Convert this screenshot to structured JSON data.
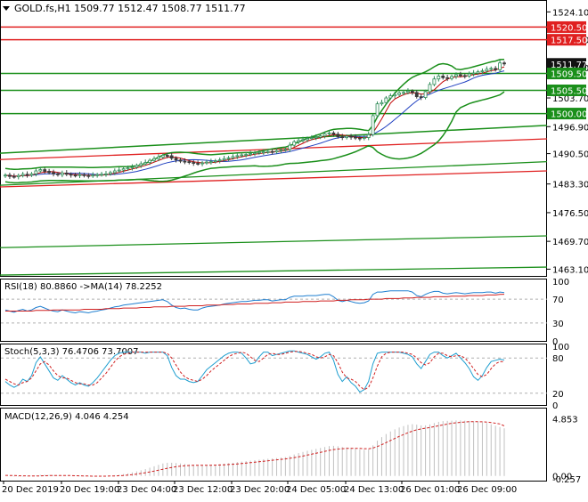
{
  "title": "GOLD.fs,H1  1509.77 1512.47 1508.77 1511.77",
  "colors": {
    "up": "#2e8b57",
    "down": "#3a3a3a",
    "support": "#1a8f1a",
    "resistance": "#e02020",
    "ma_fast": "#c00000",
    "ma_slow": "#1f3fc0",
    "rsi": "#1f7fd0",
    "rsi_ma": "#d02020",
    "stoch_main": "#1f9fd0",
    "stoch_signal": "#d02020",
    "macd_hist": "#c0c0c0",
    "macd_signal": "#d02020",
    "tag_green": "#1a8f1a",
    "tag_red": "#e02020",
    "tag_current": "#111111"
  },
  "chart_data": [
    {
      "type": "candlestick",
      "title": "GOLD.fs,H1  1509.77 1512.47 1508.77 1511.77",
      "ylim": [
        1461.5,
        1526.5
      ],
      "y_ticks": [
        "1524.10",
        "1517.50",
        "1510.90",
        "1503.70",
        "1496.90",
        "1490.50",
        "1483.30",
        "1476.50",
        "1469.70",
        "1463.10"
      ],
      "x_labels": [
        "20 Dec 2019",
        "20 Dec 19:00",
        "23 Dec 04:00",
        "23 Dec 12:00",
        "23 Dec 20:00",
        "24 Dec 05:00",
        "24 Dec 13:00",
        "26 Dec 01:00",
        "26 Dec 09:00"
      ],
      "price_tags": [
        {
          "label": "1520.50",
          "kind": "resistance"
        },
        {
          "label": "1517.50",
          "kind": "resistance"
        },
        {
          "label": "1511.77",
          "kind": "current"
        },
        {
          "label": "1509.50",
          "kind": "support"
        },
        {
          "label": "1505.50",
          "kind": "support"
        },
        {
          "label": "1500.00",
          "kind": "support"
        }
      ],
      "horizontal_levels": {
        "resistance": [
          1520.5,
          1517.5
        ],
        "support": [
          1509.5,
          1505.5,
          1500.0
        ]
      },
      "closes": [
        1485.4,
        1485.1,
        1485.0,
        1485.3,
        1485.6,
        1485.4,
        1485.7,
        1486.4,
        1486.7,
        1486.3,
        1486.0,
        1485.7,
        1485.5,
        1485.9,
        1485.6,
        1485.4,
        1485.3,
        1485.5,
        1485.3,
        1485.2,
        1485.4,
        1485.5,
        1485.6,
        1485.7,
        1486.0,
        1486.4,
        1486.6,
        1486.9,
        1487.1,
        1487.3,
        1487.7,
        1488.1,
        1488.4,
        1488.9,
        1489.3,
        1489.7,
        1490.1,
        1490.0,
        1489.4,
        1489.0,
        1488.7,
        1488.6,
        1488.4,
        1488.2,
        1488.1,
        1488.3,
        1488.5,
        1488.6,
        1488.8,
        1489.0,
        1489.3,
        1489.5,
        1489.8,
        1490.0,
        1490.2,
        1490.3,
        1490.5,
        1490.7,
        1490.8,
        1490.9,
        1491.0,
        1490.9,
        1491.2,
        1491.4,
        1491.5,
        1492.5,
        1493.3,
        1493.6,
        1493.8,
        1494.1,
        1494.3,
        1494.4,
        1494.7,
        1495.2,
        1495.4,
        1495.1,
        1494.5,
        1494.3,
        1494.6,
        1494.4,
        1494.2,
        1494.1,
        1494.3,
        1495.0,
        1499.5,
        1502.3,
        1502.6,
        1503.7,
        1504.2,
        1504.5,
        1504.9,
        1505.0,
        1505.3,
        1505.0,
        1504.0,
        1503.8,
        1505.2,
        1506.9,
        1508.2,
        1508.9,
        1508.5,
        1508.3,
        1508.8,
        1509.2,
        1509.0,
        1508.9,
        1509.4,
        1509.6,
        1509.9,
        1510.1,
        1510.5,
        1510.7,
        1510.4,
        1512.0,
        1511.77
      ]
    },
    {
      "type": "line",
      "title": "RSI(18) 80.8860  ->MA(14) 78.2252",
      "ylim": [
        0,
        100
      ],
      "y_ticks": [
        "100",
        "70",
        "30",
        "0"
      ],
      "levels": [
        70,
        30
      ],
      "series": [
        {
          "name": "RSI(18)",
          "values": [
            52,
            50,
            48,
            51,
            53,
            50,
            52,
            56,
            58,
            55,
            52,
            50,
            49,
            52,
            50,
            48,
            47,
            49,
            48,
            47,
            49,
            50,
            52,
            53,
            55,
            57,
            58,
            60,
            61,
            62,
            63,
            64,
            65,
            66,
            67,
            68,
            69,
            66,
            60,
            56,
            54,
            55,
            53,
            52,
            52,
            55,
            57,
            58,
            59,
            60,
            62,
            63,
            64,
            65,
            66,
            66,
            67,
            68,
            68,
            69,
            69,
            67,
            68,
            69,
            69,
            73,
            75,
            75,
            75,
            76,
            76,
            76,
            77,
            78,
            78,
            74,
            68,
            66,
            68,
            66,
            64,
            63,
            64,
            67,
            78,
            82,
            82,
            83,
            84,
            84,
            84,
            84,
            84,
            82,
            76,
            74,
            78,
            81,
            83,
            83,
            80,
            79,
            80,
            81,
            80,
            79,
            80,
            81,
            81,
            81,
            82,
            82,
            80,
            82,
            80.886
          ]
        },
        {
          "name": "MA(14)",
          "values": [
            50,
            50,
            50,
            50,
            50,
            50,
            50,
            51,
            51,
            51,
            51,
            52,
            52,
            52,
            52,
            52,
            52,
            52,
            53,
            53,
            53,
            53,
            53,
            54,
            54,
            54,
            54,
            55,
            55,
            55,
            55,
            56,
            56,
            56,
            57,
            57,
            57,
            57,
            58,
            58,
            58,
            58,
            59,
            59,
            59,
            59,
            60,
            60,
            60,
            60,
            61,
            61,
            61,
            62,
            62,
            62,
            62,
            63,
            63,
            63,
            63,
            64,
            64,
            64,
            65,
            65,
            65,
            65,
            66,
            66,
            66,
            66,
            67,
            67,
            67,
            67,
            68,
            68,
            68,
            69,
            69,
            69,
            69,
            70,
            70,
            70,
            70,
            71,
            71,
            71,
            71,
            72,
            72,
            72,
            73,
            73,
            73,
            73,
            74,
            74,
            74,
            74,
            75,
            75,
            75,
            75,
            76,
            76,
            76,
            76,
            77,
            77,
            77,
            78,
            78.2252
          ]
        }
      ]
    },
    {
      "type": "line",
      "title": "Stoch(5,3,3) 76.4706 73.7007",
      "ylim": [
        0,
        100
      ],
      "y_ticks": [
        "100",
        "80",
        "20",
        "0"
      ],
      "levels": [
        80,
        20
      ],
      "series": [
        {
          "name": "%K",
          "values": [
            40,
            34,
            30,
            34,
            44,
            40,
            50,
            72,
            82,
            70,
            58,
            46,
            42,
            50,
            44,
            38,
            34,
            38,
            34,
            32,
            38,
            46,
            56,
            66,
            76,
            84,
            88,
            90,
            90,
            90,
            90,
            90,
            88,
            90,
            90,
            90,
            90,
            84,
            64,
            50,
            44,
            44,
            40,
            38,
            40,
            50,
            60,
            66,
            72,
            78,
            84,
            88,
            90,
            90,
            88,
            80,
            70,
            72,
            82,
            90,
            90,
            84,
            86,
            88,
            90,
            92,
            92,
            90,
            88,
            86,
            82,
            78,
            82,
            88,
            90,
            76,
            52,
            40,
            48,
            38,
            32,
            22,
            26,
            40,
            70,
            88,
            90,
            90,
            90,
            90,
            90,
            88,
            86,
            82,
            70,
            62,
            74,
            86,
            90,
            90,
            84,
            80,
            84,
            88,
            80,
            72,
            62,
            48,
            42,
            50,
            64,
            74,
            76,
            78,
            76.4706
          ]
        },
        {
          "name": "%D",
          "values": [
            44,
            40,
            36,
            34,
            38,
            40,
            46,
            58,
            70,
            74,
            68,
            58,
            50,
            46,
            46,
            42,
            38,
            36,
            36,
            34,
            34,
            38,
            46,
            54,
            64,
            74,
            82,
            86,
            88,
            90,
            90,
            90,
            90,
            90,
            90,
            90,
            90,
            88,
            80,
            68,
            56,
            48,
            44,
            42,
            40,
            44,
            50,
            58,
            64,
            70,
            76,
            82,
            86,
            88,
            90,
            88,
            82,
            76,
            74,
            80,
            86,
            88,
            86,
            86,
            88,
            90,
            91,
            91,
            90,
            88,
            86,
            82,
            80,
            82,
            86,
            84,
            72,
            56,
            46,
            44,
            40,
            32,
            26,
            30,
            46,
            66,
            82,
            88,
            90,
            90,
            90,
            90,
            88,
            86,
            80,
            72,
            68,
            72,
            82,
            88,
            88,
            84,
            82,
            84,
            84,
            80,
            72,
            62,
            52,
            48,
            52,
            62,
            70,
            74,
            73.7007
          ]
        }
      ]
    },
    {
      "type": "bar",
      "title": "MACD(12,26,9) 4.046 4.254",
      "ylim": [
        -0.4,
        5.2
      ],
      "y_ticks": [
        "4.853",
        "-0.257",
        "0.00"
      ],
      "series": [
        {
          "name": "MACD",
          "values": [
            0.0,
            -0.02,
            -0.05,
            -0.06,
            -0.05,
            -0.04,
            -0.02,
            0.04,
            0.09,
            0.1,
            0.09,
            0.07,
            0.04,
            0.03,
            0.02,
            0.0,
            -0.02,
            -0.03,
            -0.04,
            -0.05,
            -0.05,
            -0.04,
            -0.03,
            -0.01,
            0.02,
            0.06,
            0.1,
            0.16,
            0.22,
            0.3,
            0.38,
            0.48,
            0.58,
            0.7,
            0.82,
            0.94,
            1.06,
            1.12,
            1.12,
            1.1,
            1.06,
            1.02,
            0.98,
            0.94,
            0.9,
            0.9,
            0.92,
            0.94,
            0.96,
            1.0,
            1.04,
            1.08,
            1.12,
            1.18,
            1.22,
            1.26,
            1.3,
            1.34,
            1.38,
            1.42,
            1.46,
            1.48,
            1.52,
            1.56,
            1.6,
            1.7,
            1.82,
            1.94,
            2.04,
            2.14,
            2.22,
            2.3,
            2.38,
            2.46,
            2.54,
            2.56,
            2.52,
            2.46,
            2.42,
            2.38,
            2.32,
            2.26,
            2.22,
            2.24,
            2.6,
            3.0,
            3.3,
            3.56,
            3.78,
            3.96,
            4.12,
            4.24,
            4.34,
            4.4,
            4.36,
            4.3,
            4.3,
            4.38,
            4.5,
            4.6,
            4.66,
            4.68,
            4.7,
            4.72,
            4.72,
            4.7,
            4.68,
            4.64,
            4.6,
            4.56,
            4.5,
            4.4,
            4.26,
            4.16,
            4.046
          ]
        },
        {
          "name": "Signal",
          "values": [
            0.05,
            0.04,
            0.03,
            0.02,
            0.01,
            0.0,
            -0.01,
            -0.01,
            0.0,
            0.02,
            0.03,
            0.04,
            0.04,
            0.04,
            0.04,
            0.03,
            0.02,
            0.01,
            0.0,
            -0.01,
            -0.02,
            -0.02,
            -0.02,
            -0.02,
            -0.01,
            0.0,
            0.02,
            0.04,
            0.07,
            0.11,
            0.16,
            0.21,
            0.27,
            0.34,
            0.41,
            0.49,
            0.57,
            0.65,
            0.72,
            0.78,
            0.83,
            0.87,
            0.89,
            0.91,
            0.91,
            0.91,
            0.91,
            0.91,
            0.92,
            0.93,
            0.95,
            0.97,
            0.99,
            1.02,
            1.05,
            1.09,
            1.13,
            1.17,
            1.21,
            1.25,
            1.29,
            1.33,
            1.37,
            1.41,
            1.45,
            1.5,
            1.56,
            1.62,
            1.69,
            1.77,
            1.85,
            1.93,
            2.01,
            2.09,
            2.17,
            2.24,
            2.29,
            2.32,
            2.34,
            2.35,
            2.35,
            2.34,
            2.32,
            2.31,
            2.37,
            2.5,
            2.66,
            2.83,
            3.01,
            3.19,
            3.36,
            3.52,
            3.67,
            3.81,
            3.92,
            4.0,
            4.06,
            4.12,
            4.19,
            4.27,
            4.34,
            4.41,
            4.47,
            4.52,
            4.56,
            4.59,
            4.61,
            4.62,
            4.61,
            4.6,
            4.58,
            4.54,
            4.48,
            4.42,
            4.254
          ]
        }
      ]
    }
  ]
}
